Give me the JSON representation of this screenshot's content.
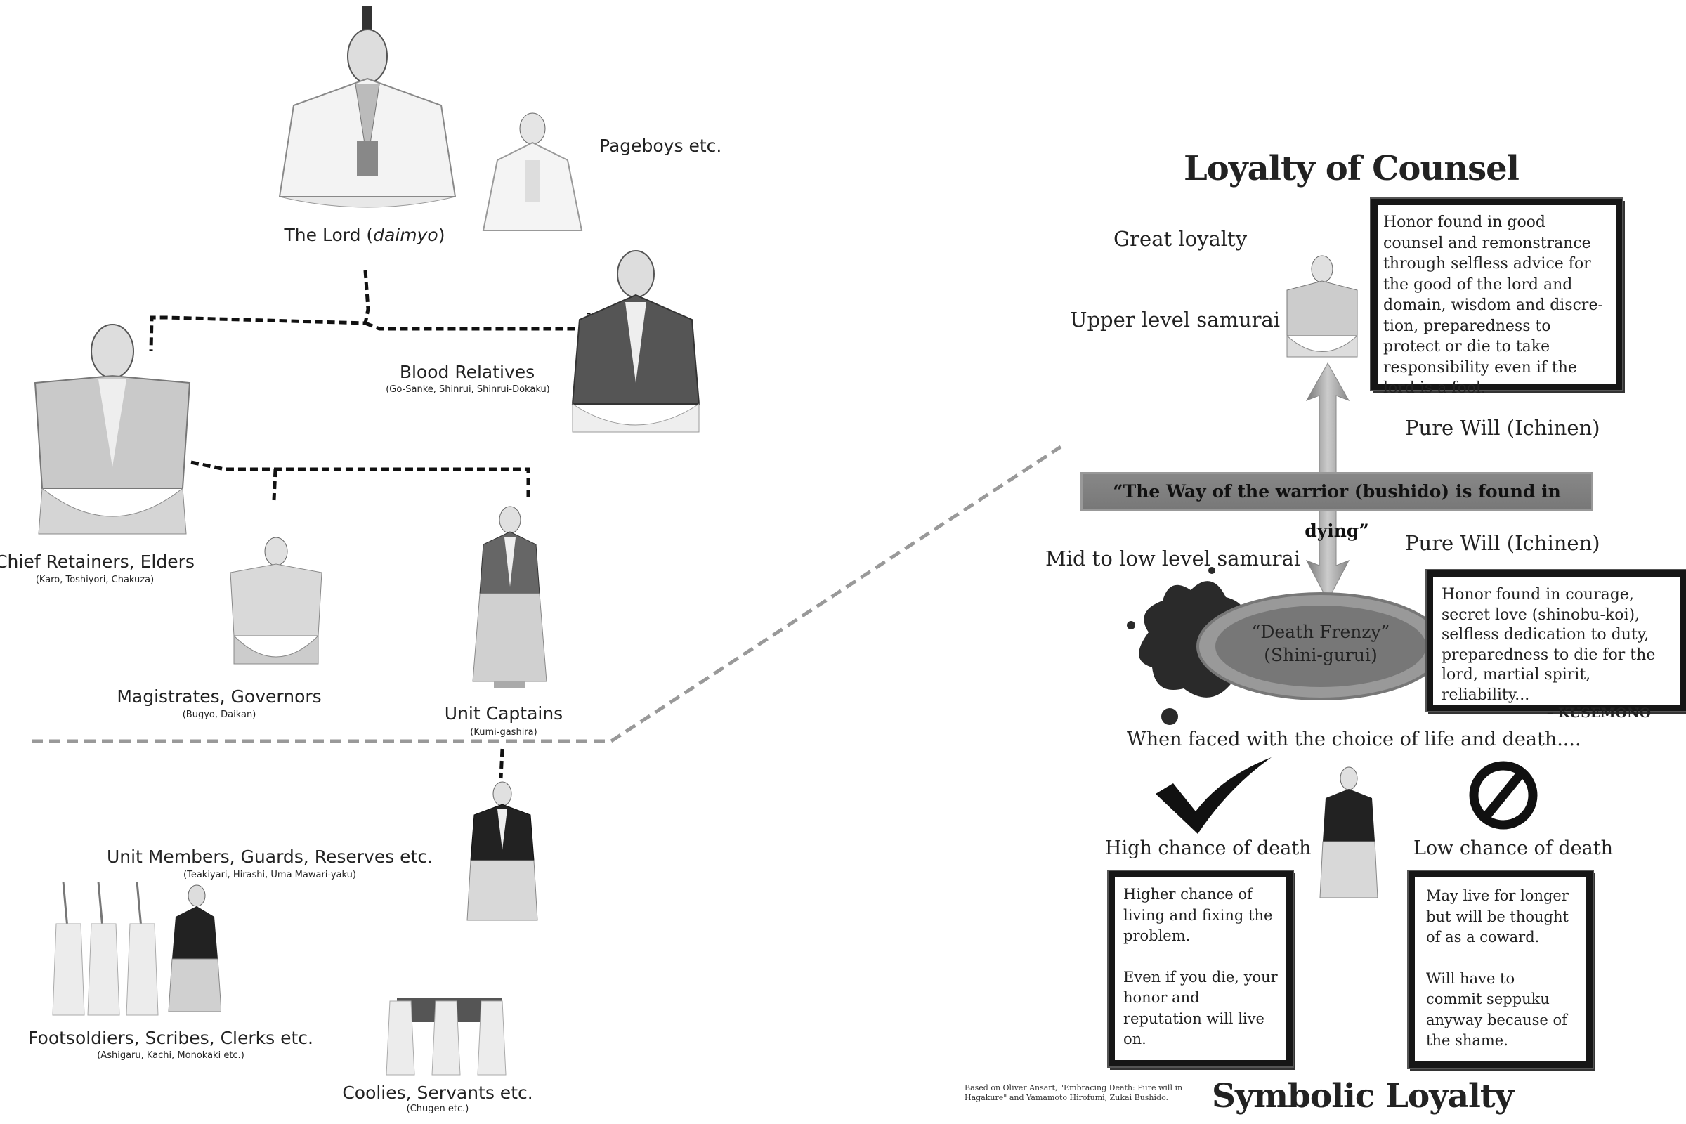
{
  "hierarchy": {
    "lord": {
      "label_prefix": "The Lord (",
      "label_italic": "daimyo",
      "label_suffix": ")"
    },
    "pageboys": {
      "label": "Pageboys etc."
    },
    "blood_relatives": {
      "label": "Blood Relatives",
      "sub": "(Go-Sanke, Shinrui, Shinrui-Dokaku)"
    },
    "chief_retainers": {
      "label": "Chief Retainers, Elders",
      "sub": "(Karo, Toshiyori, Chakuza)"
    },
    "magistrates": {
      "label": "Magistrates, Governors",
      "sub": "(Bugyo, Daikan)"
    },
    "unit_captains": {
      "label": "Unit Captains",
      "sub": "(Kumi-gashira)"
    },
    "unit_members": {
      "label": "Unit Members, Guards, Reserves etc.",
      "sub": "(Teakiyari, Hirashi, Uma Mawari-yaku)"
    },
    "footsoldiers": {
      "label": "Footsoldiers, Scribes, Clerks etc.",
      "sub": "(Ashigaru, Kachi, Monokaki etc.)"
    },
    "coolies": {
      "label": "Coolies, Servants etc.",
      "sub": "(Chugen etc.)"
    }
  },
  "loyalty": {
    "counsel_title": "Loyalty of Counsel",
    "great_loyalty": "Great loyalty",
    "upper_level": "Upper level samurai",
    "counsel_box": "Honor found in good counsel and remonstrance through selfless advice for the good of the lord and domain, wisdom and discre-tion, preparedness to protect or die to take responsibility even if the lord is a fool.",
    "pure_will_top": "Pure Will (Ichinen)",
    "bushido_quote": "“The Way of the warrior (bushido) is found in dying”",
    "pure_will_bottom": "Pure Will (Ichinen)",
    "mid_low_level": "Mid to low level samurai",
    "death_frenzy_line1": "“Death Frenzy”",
    "death_frenzy_line2": "(Shini-gurui)",
    "kusemono_box": "Honor found in courage, secret love (shinobu-koi), selfless dedication to duty, preparedness to die for the lord, martial spirit, reliability...",
    "kusemono_sig": "– KUSEMONO",
    "choice_line": "When faced with the choice of life and death....",
    "high_chance": "High chance of death",
    "low_chance": "Low chance of death",
    "high_box_p1": "Higher chance of living and fixing the problem.",
    "high_box_p2": "Even if you die, your honor and reputation will live on.",
    "low_box_p1": "May live for longer but will be thought of as a coward.",
    "low_box_p2": "Will have to commit seppuku anyway because of the shame.",
    "citation": "Based on Oliver Ansart, \"Embracing Death: Pure will in Hagakure\" and Yamamoto Hirofumi, Zukai Bushido.",
    "symbolic_title": "Symbolic Loyalty"
  }
}
